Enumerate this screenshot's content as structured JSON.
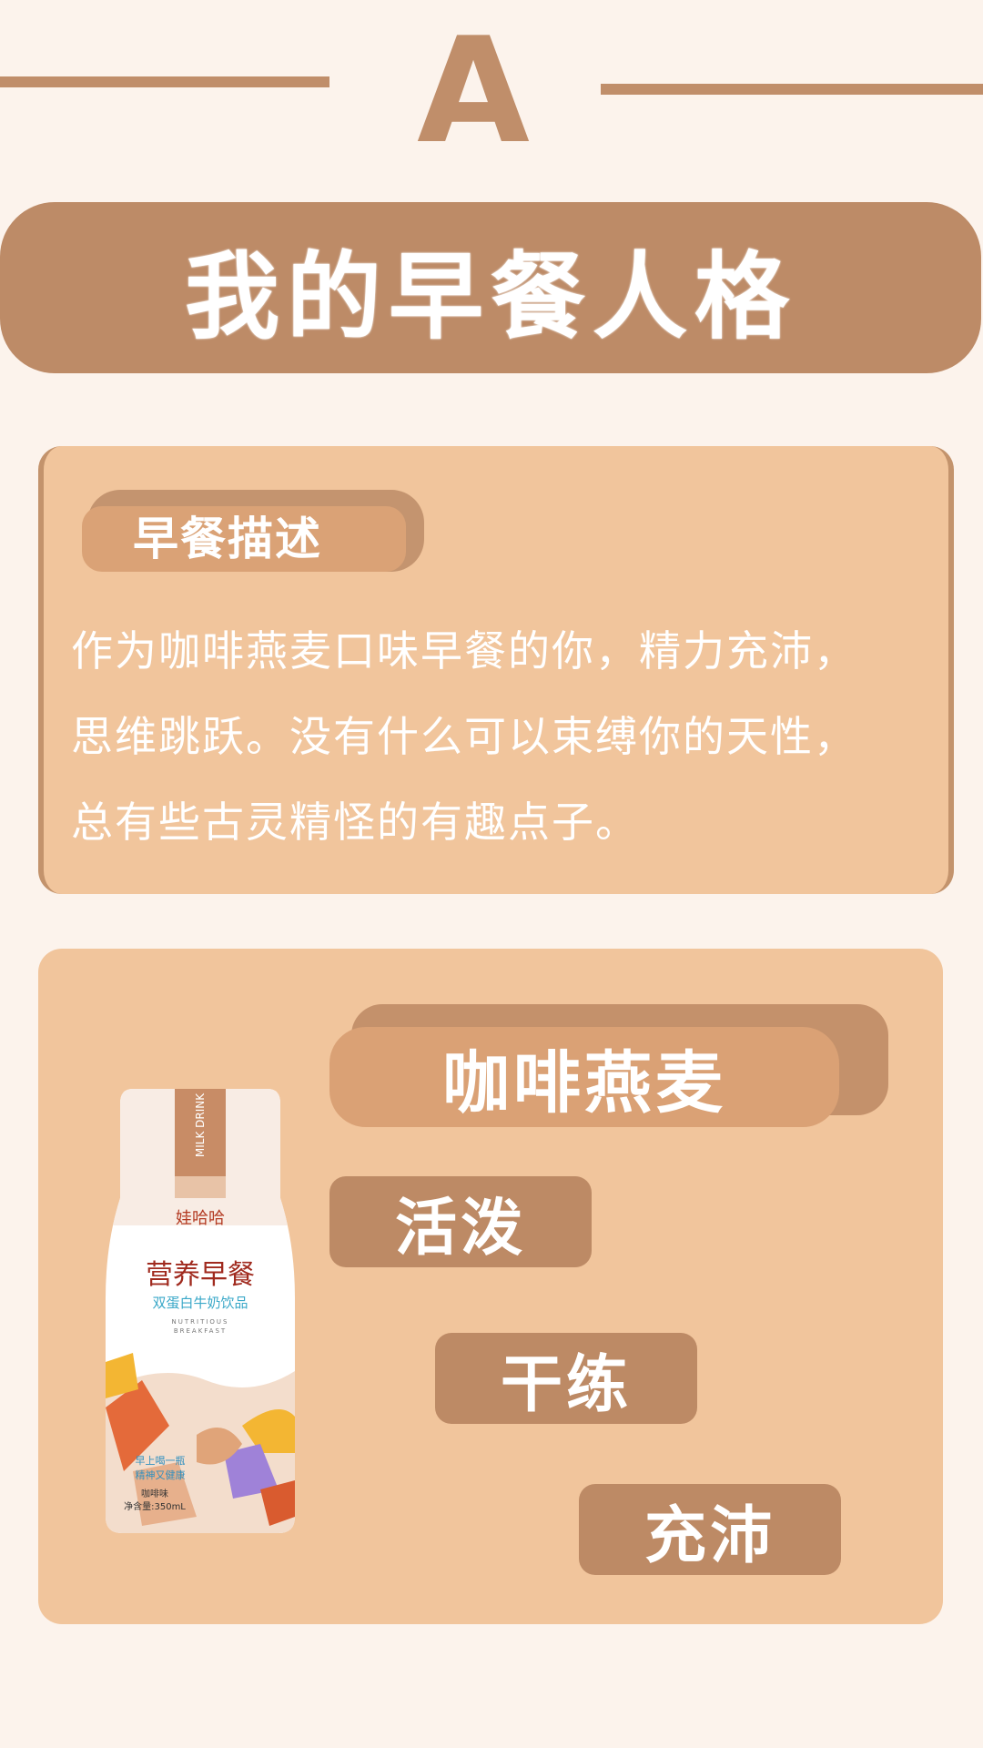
{
  "header": {
    "letter": "A",
    "title": "我的早餐人格"
  },
  "description_card": {
    "tab_label": "早餐描述",
    "lines": [
      "作为咖啡燕麦口味早餐的你，精力充沛，",
      "思维跳跃。没有什么可以束缚你的天性，",
      "总有些古灵精怪的有趣点子。"
    ]
  },
  "result_card": {
    "flavor": "咖啡燕麦",
    "traits": [
      "活泼",
      "干练",
      "充沛"
    ]
  },
  "product": {
    "brand": "娃哈哈",
    "side_label": "MILK DRINK",
    "name": "营养早餐",
    "subtitle": "双蛋白牛奶饮品",
    "english_line1": "NUTRITIOUS",
    "english_line2": "BREAKFAST",
    "slogan_line1": "早上喝一瓶",
    "slogan_line2": "精神又健康",
    "flavor_label": "咖啡味",
    "volume": "净含量:350mL"
  },
  "colors": {
    "background": "#fcf3ec",
    "accent_brown": "#bd8b67",
    "card_peach": "#f1c59c",
    "tab_tan": "#daa276"
  }
}
